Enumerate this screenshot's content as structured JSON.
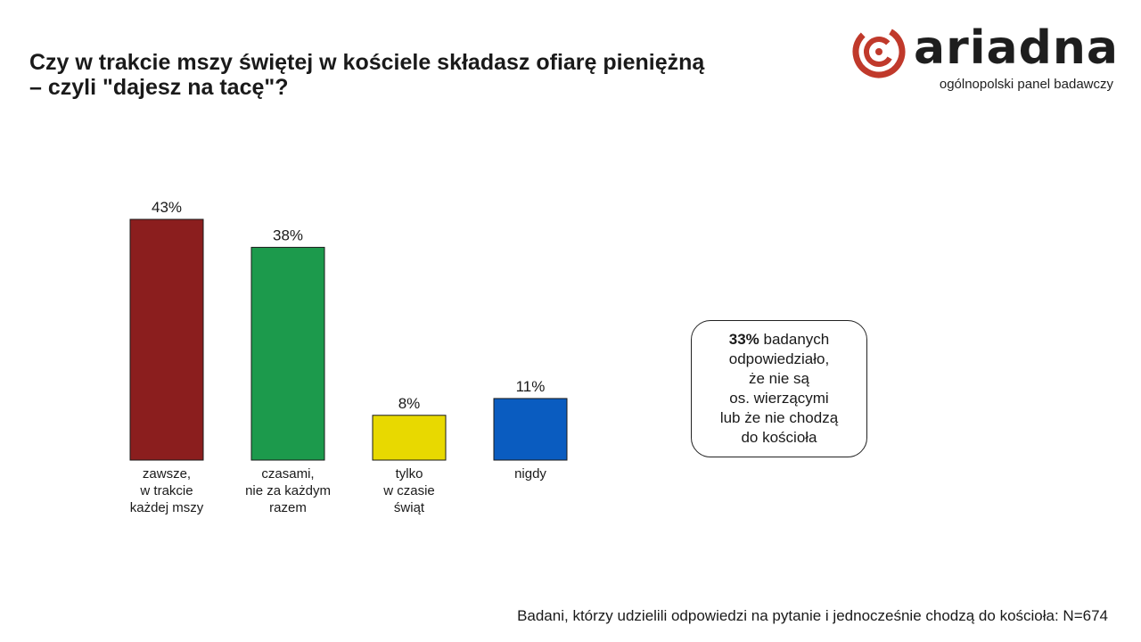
{
  "title_lines": [
    "Czy w trakcie mszy świętej w kościele składasz ofiarę pieniężną",
    "– czyli \"dajesz na tacę\"?"
  ],
  "logo": {
    "wordmark": "ariadna",
    "tagline": "ogólnopolski panel badawczy",
    "accent_color": "#c0392b"
  },
  "chart_data": {
    "type": "bar",
    "categories": [
      [
        "zawsze,",
        "w trakcie",
        "każdej mszy"
      ],
      [
        "czasami,",
        "nie za każdym",
        "razem"
      ],
      [
        "tylko",
        "w czasie",
        "świąt"
      ],
      [
        "nigdy"
      ]
    ],
    "values": [
      43,
      38,
      8,
      11
    ],
    "value_labels": [
      "43%",
      "38%",
      "8%",
      "11%"
    ],
    "colors": [
      "#8b1e1e",
      "#1c9a4c",
      "#e8d900",
      "#0a5cc0"
    ],
    "unit": "%",
    "ylim": [
      0,
      43
    ],
    "grid": false,
    "legend": "none"
  },
  "callout": {
    "highlight": "33%",
    "text_lines": [
      " badanych",
      "odpowiedziało,",
      "że nie są",
      "os. wierzącymi",
      "lub że nie chodzą",
      "do kościoła"
    ]
  },
  "footnote": "Badani, którzy udzielili odpowiedzi na pytanie i jednocześnie chodzą do kościoła: N=674"
}
